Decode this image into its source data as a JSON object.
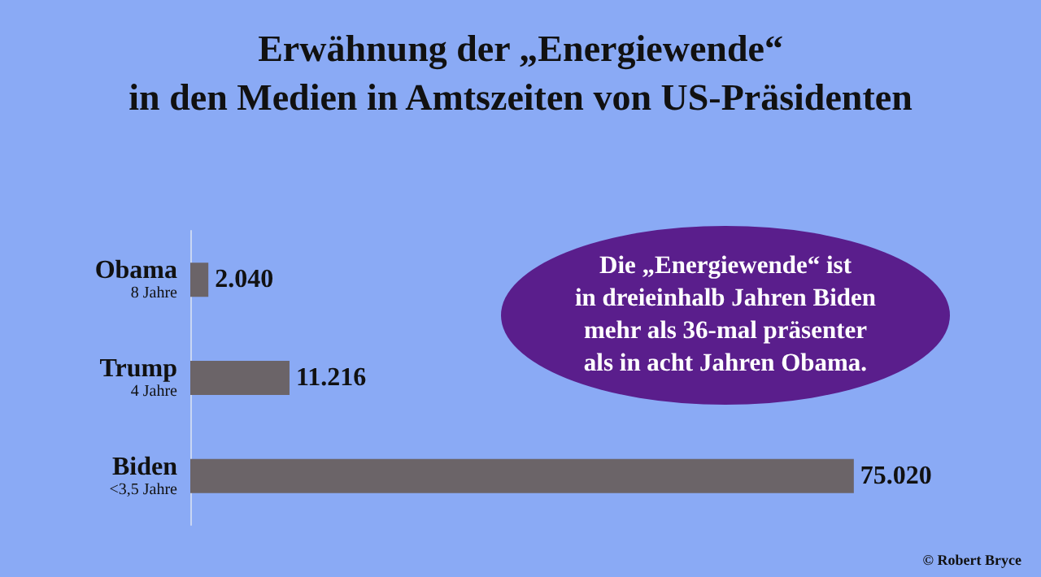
{
  "chart_data": {
    "type": "bar",
    "orientation": "horizontal",
    "title": "Erwähnung der „Energiewende“\nin den Medien in Amtszeiten von US-Präsidenten",
    "categories": [
      "Obama\n8 Jahre",
      "Trump\n4 Jahre",
      "Biden\n<3,5 Jahre"
    ],
    "values": [
      2040,
      11216,
      75020
    ],
    "color": "#6b6468",
    "value_labels": [
      "2.040",
      "11.216",
      "75.020"
    ],
    "annotations": [
      "Die „Energiewende“ ist\nin dreieinhalb Jahren Biden\nmehr als 36-mal präsenter\nals in acht Jahren Obama.",
      "© Robert Bryce"
    ]
  }
}
